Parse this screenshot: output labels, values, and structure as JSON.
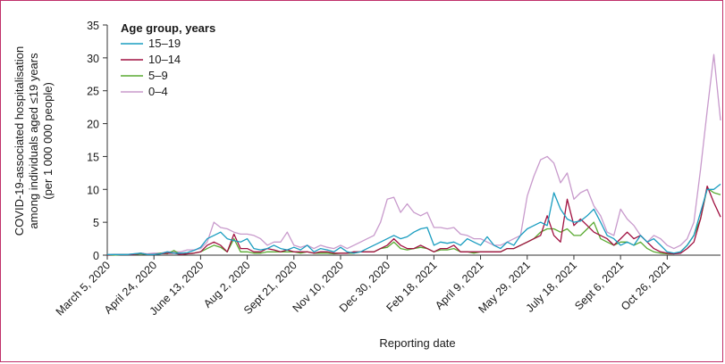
{
  "chart_data": {
    "type": "line",
    "xlabel": "Reporting date",
    "ylabel_lines": [
      "COVID-19-associated hospitalisation",
      "among individuals aged ≤19 years",
      "(per 1 000 000 people)"
    ],
    "ylim": [
      0,
      35
    ],
    "yticks": [
      0,
      5,
      10,
      15,
      20,
      25,
      30,
      35
    ],
    "x_range_weeks": [
      0,
      92
    ],
    "x_ticks": [
      {
        "week": 0,
        "label": "March 5, 2020"
      },
      {
        "week": 7,
        "label": "April 24, 2020"
      },
      {
        "week": 14,
        "label": "June 13, 2020"
      },
      {
        "week": 21,
        "label": "Aug 2, 2020"
      },
      {
        "week": 28,
        "label": "Sept 21, 2020"
      },
      {
        "week": 35,
        "label": "Nov 10, 2020"
      },
      {
        "week": 42,
        "label": "Dec 30, 2020"
      },
      {
        "week": 49,
        "label": "Feb 18, 2021"
      },
      {
        "week": 56,
        "label": "April 9, 2021"
      },
      {
        "week": 63,
        "label": "May 29, 2021"
      },
      {
        "week": 70,
        "label": "July 18, 2021"
      },
      {
        "week": 77,
        "label": "Sept 6, 2021"
      },
      {
        "week": 84,
        "label": "Oct 26, 2021"
      }
    ],
    "legend": {
      "title": "Age group, years",
      "position": "top-left"
    },
    "series": [
      {
        "name": "15–19",
        "color": "#1a9dc0",
        "values": [
          0.1,
          0.1,
          0.1,
          0.1,
          0.2,
          0.3,
          0.1,
          0.1,
          0.2,
          0.5,
          0.3,
          0.3,
          0.4,
          0.7,
          1.2,
          2.5,
          3.0,
          3.5,
          2.5,
          2.2,
          2.0,
          2.5,
          1.0,
          0.8,
          1.0,
          1.5,
          1.0,
          0.8,
          1.2,
          0.8,
          1.5,
          0.5,
          1.0,
          0.8,
          0.5,
          1.2,
          0.5,
          0.3,
          0.5,
          1.0,
          1.5,
          2.0,
          2.5,
          3.0,
          2.5,
          2.8,
          3.5,
          4.0,
          4.2,
          1.5,
          2.0,
          1.8,
          2.0,
          1.5,
          2.5,
          2.0,
          1.5,
          2.8,
          1.5,
          1.0,
          2.0,
          1.5,
          3.0,
          4.0,
          4.5,
          5.0,
          4.5,
          9.5,
          7.0,
          5.5,
          5.0,
          5.2,
          6.0,
          7.0,
          5.0,
          3.0,
          2.5,
          1.5,
          2.0,
          1.5,
          3.0,
          2.0,
          2.5,
          1.5,
          0.5,
          0.3,
          0.5,
          1.5,
          3.0,
          6.5,
          10.0,
          10.0,
          10.8
        ]
      },
      {
        "name": "10–14",
        "color": "#a01040",
        "values": [
          0.0,
          0.1,
          0.1,
          0.1,
          0.1,
          0.3,
          0.1,
          0.1,
          0.2,
          0.3,
          0.3,
          0.1,
          0.2,
          0.3,
          0.5,
          1.5,
          2.0,
          1.5,
          0.5,
          3.2,
          1.0,
          1.0,
          0.5,
          0.5,
          1.0,
          0.8,
          0.5,
          0.8,
          0.5,
          0.5,
          0.5,
          0.3,
          0.5,
          0.5,
          0.3,
          0.3,
          0.3,
          0.5,
          0.5,
          0.5,
          0.5,
          1.0,
          1.5,
          2.5,
          1.5,
          1.0,
          1.0,
          1.5,
          1.0,
          0.5,
          1.0,
          1.0,
          1.5,
          0.5,
          0.5,
          0.5,
          0.5,
          0.5,
          0.5,
          0.5,
          1.0,
          1.0,
          1.5,
          2.0,
          2.5,
          3.0,
          6.0,
          3.0,
          2.0,
          8.5,
          4.5,
          5.5,
          4.5,
          3.5,
          3.0,
          2.5,
          1.5,
          2.5,
          3.5,
          2.5,
          3.0,
          2.0,
          1.0,
          0.5,
          0.3,
          0.2,
          0.3,
          1.0,
          2.0,
          5.5,
          10.5,
          8.0,
          5.8
        ]
      },
      {
        "name": "5–9",
        "color": "#5aaa32",
        "values": [
          0.0,
          0.0,
          0.1,
          0.1,
          0.1,
          0.2,
          0.1,
          0.1,
          0.3,
          0.2,
          0.7,
          0.1,
          0.2,
          0.3,
          0.5,
          1.0,
          1.5,
          1.2,
          0.5,
          2.5,
          0.5,
          0.5,
          0.3,
          0.3,
          0.5,
          0.5,
          0.5,
          0.5,
          0.5,
          0.3,
          0.5,
          0.3,
          0.3,
          0.3,
          0.2,
          0.3,
          0.3,
          0.3,
          0.5,
          0.5,
          0.5,
          1.0,
          1.2,
          2.0,
          1.0,
          0.8,
          1.0,
          1.2,
          1.0,
          0.5,
          0.8,
          0.8,
          1.0,
          0.5,
          0.5,
          0.3,
          0.5,
          0.5,
          0.5,
          0.5,
          1.0,
          1.0,
          1.5,
          2.0,
          2.5,
          3.5,
          4.0,
          4.0,
          3.5,
          4.0,
          3.0,
          3.0,
          4.0,
          5.0,
          2.5,
          2.0,
          1.5,
          2.0,
          2.0,
          1.5,
          2.0,
          1.0,
          0.5,
          0.3,
          0.2,
          0.2,
          0.5,
          1.5,
          3.0,
          5.5,
          10.2,
          9.5,
          9.2
        ]
      },
      {
        "name": "0–4",
        "color": "#c89acc",
        "values": [
          0.1,
          0.1,
          0.1,
          0.1,
          0.2,
          0.3,
          0.2,
          0.3,
          0.3,
          0.5,
          0.5,
          0.5,
          0.8,
          0.8,
          1.0,
          2.0,
          5.0,
          4.2,
          4.0,
          3.5,
          3.2,
          3.2,
          3.0,
          2.5,
          1.5,
          2.0,
          2.0,
          3.5,
          1.5,
          1.2,
          1.5,
          1.0,
          1.5,
          1.2,
          1.0,
          1.5,
          1.0,
          1.5,
          2.0,
          2.5,
          3.0,
          5.0,
          8.5,
          8.8,
          6.5,
          7.8,
          6.5,
          6.0,
          6.5,
          4.2,
          4.2,
          4.0,
          4.2,
          3.2,
          3.0,
          2.5,
          2.5,
          2.0,
          1.5,
          1.5,
          2.0,
          2.5,
          3.0,
          9.0,
          12.0,
          14.5,
          15.0,
          14.0,
          11.0,
          12.5,
          8.5,
          9.5,
          10.0,
          7.5,
          6.0,
          3.5,
          3.0,
          7.0,
          5.5,
          4.5,
          3.0,
          2.0,
          3.0,
          2.5,
          1.5,
          1.0,
          1.5,
          2.5,
          5.0,
          13.0,
          22.0,
          30.5,
          20.5
        ]
      }
    ]
  }
}
